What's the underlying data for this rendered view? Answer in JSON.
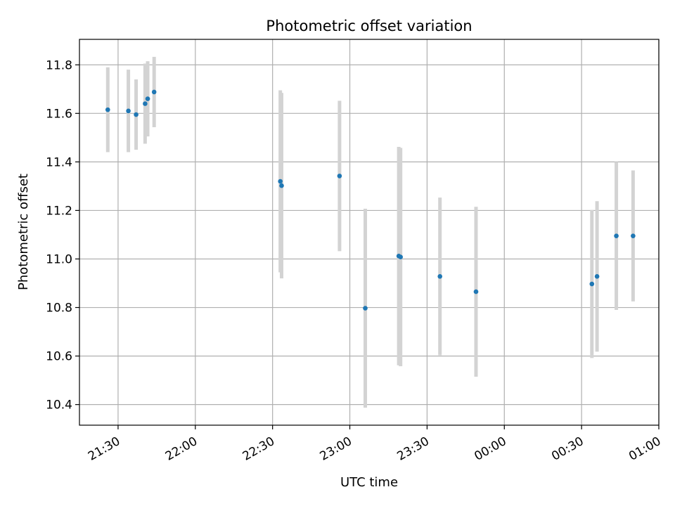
{
  "chart_data": {
    "type": "scatter",
    "title": "Photometric offset variation",
    "xlabel": "UTC time",
    "ylabel": "Photometric offset",
    "x_tick_labels": [
      "21:30",
      "22:00",
      "22:30",
      "23:00",
      "23:30",
      "00:00",
      "00:30",
      "01:00"
    ],
    "x_tick_minutes": [
      0,
      30,
      60,
      90,
      120,
      150,
      180,
      210
    ],
    "xlim_minutes": [
      -15,
      210
    ],
    "y_ticks": [
      10.4,
      10.6,
      10.8,
      11.0,
      11.2,
      11.4,
      11.6,
      11.8
    ],
    "ylim": [
      10.315,
      11.905
    ],
    "grid": true,
    "colors": {
      "point": "#1f77b4",
      "errorbar": "#d3d3d3",
      "grid": "#b0b0b0"
    },
    "points": [
      {
        "t": -4.0,
        "y": 11.615,
        "err": 0.175
      },
      {
        "t": 4.0,
        "y": 11.61,
        "err": 0.17
      },
      {
        "t": 7.0,
        "y": 11.595,
        "err": 0.145
      },
      {
        "t": 10.5,
        "y": 11.64,
        "err": 0.165
      },
      {
        "t": 11.5,
        "y": 11.66,
        "err": 0.155
      },
      {
        "t": 14.0,
        "y": 11.688,
        "err": 0.145
      },
      {
        "t": 63.0,
        "y": 11.32,
        "err": 0.375
      },
      {
        "t": 63.5,
        "y": 11.302,
        "err": 0.382
      },
      {
        "t": 86.0,
        "y": 11.342,
        "err": 0.31
      },
      {
        "t": 96.0,
        "y": 10.797,
        "err": 0.41
      },
      {
        "t": 109.0,
        "y": 11.012,
        "err": 0.45
      },
      {
        "t": 109.7,
        "y": 11.008,
        "err": 0.45
      },
      {
        "t": 125.0,
        "y": 10.928,
        "err": 0.325
      },
      {
        "t": 139.0,
        "y": 10.865,
        "err": 0.35
      },
      {
        "t": 184.0,
        "y": 10.897,
        "err": 0.305
      },
      {
        "t": 186.0,
        "y": 10.928,
        "err": 0.31
      },
      {
        "t": 193.5,
        "y": 11.095,
        "err": 0.305
      },
      {
        "t": 200.0,
        "y": 11.095,
        "err": 0.27
      }
    ]
  }
}
